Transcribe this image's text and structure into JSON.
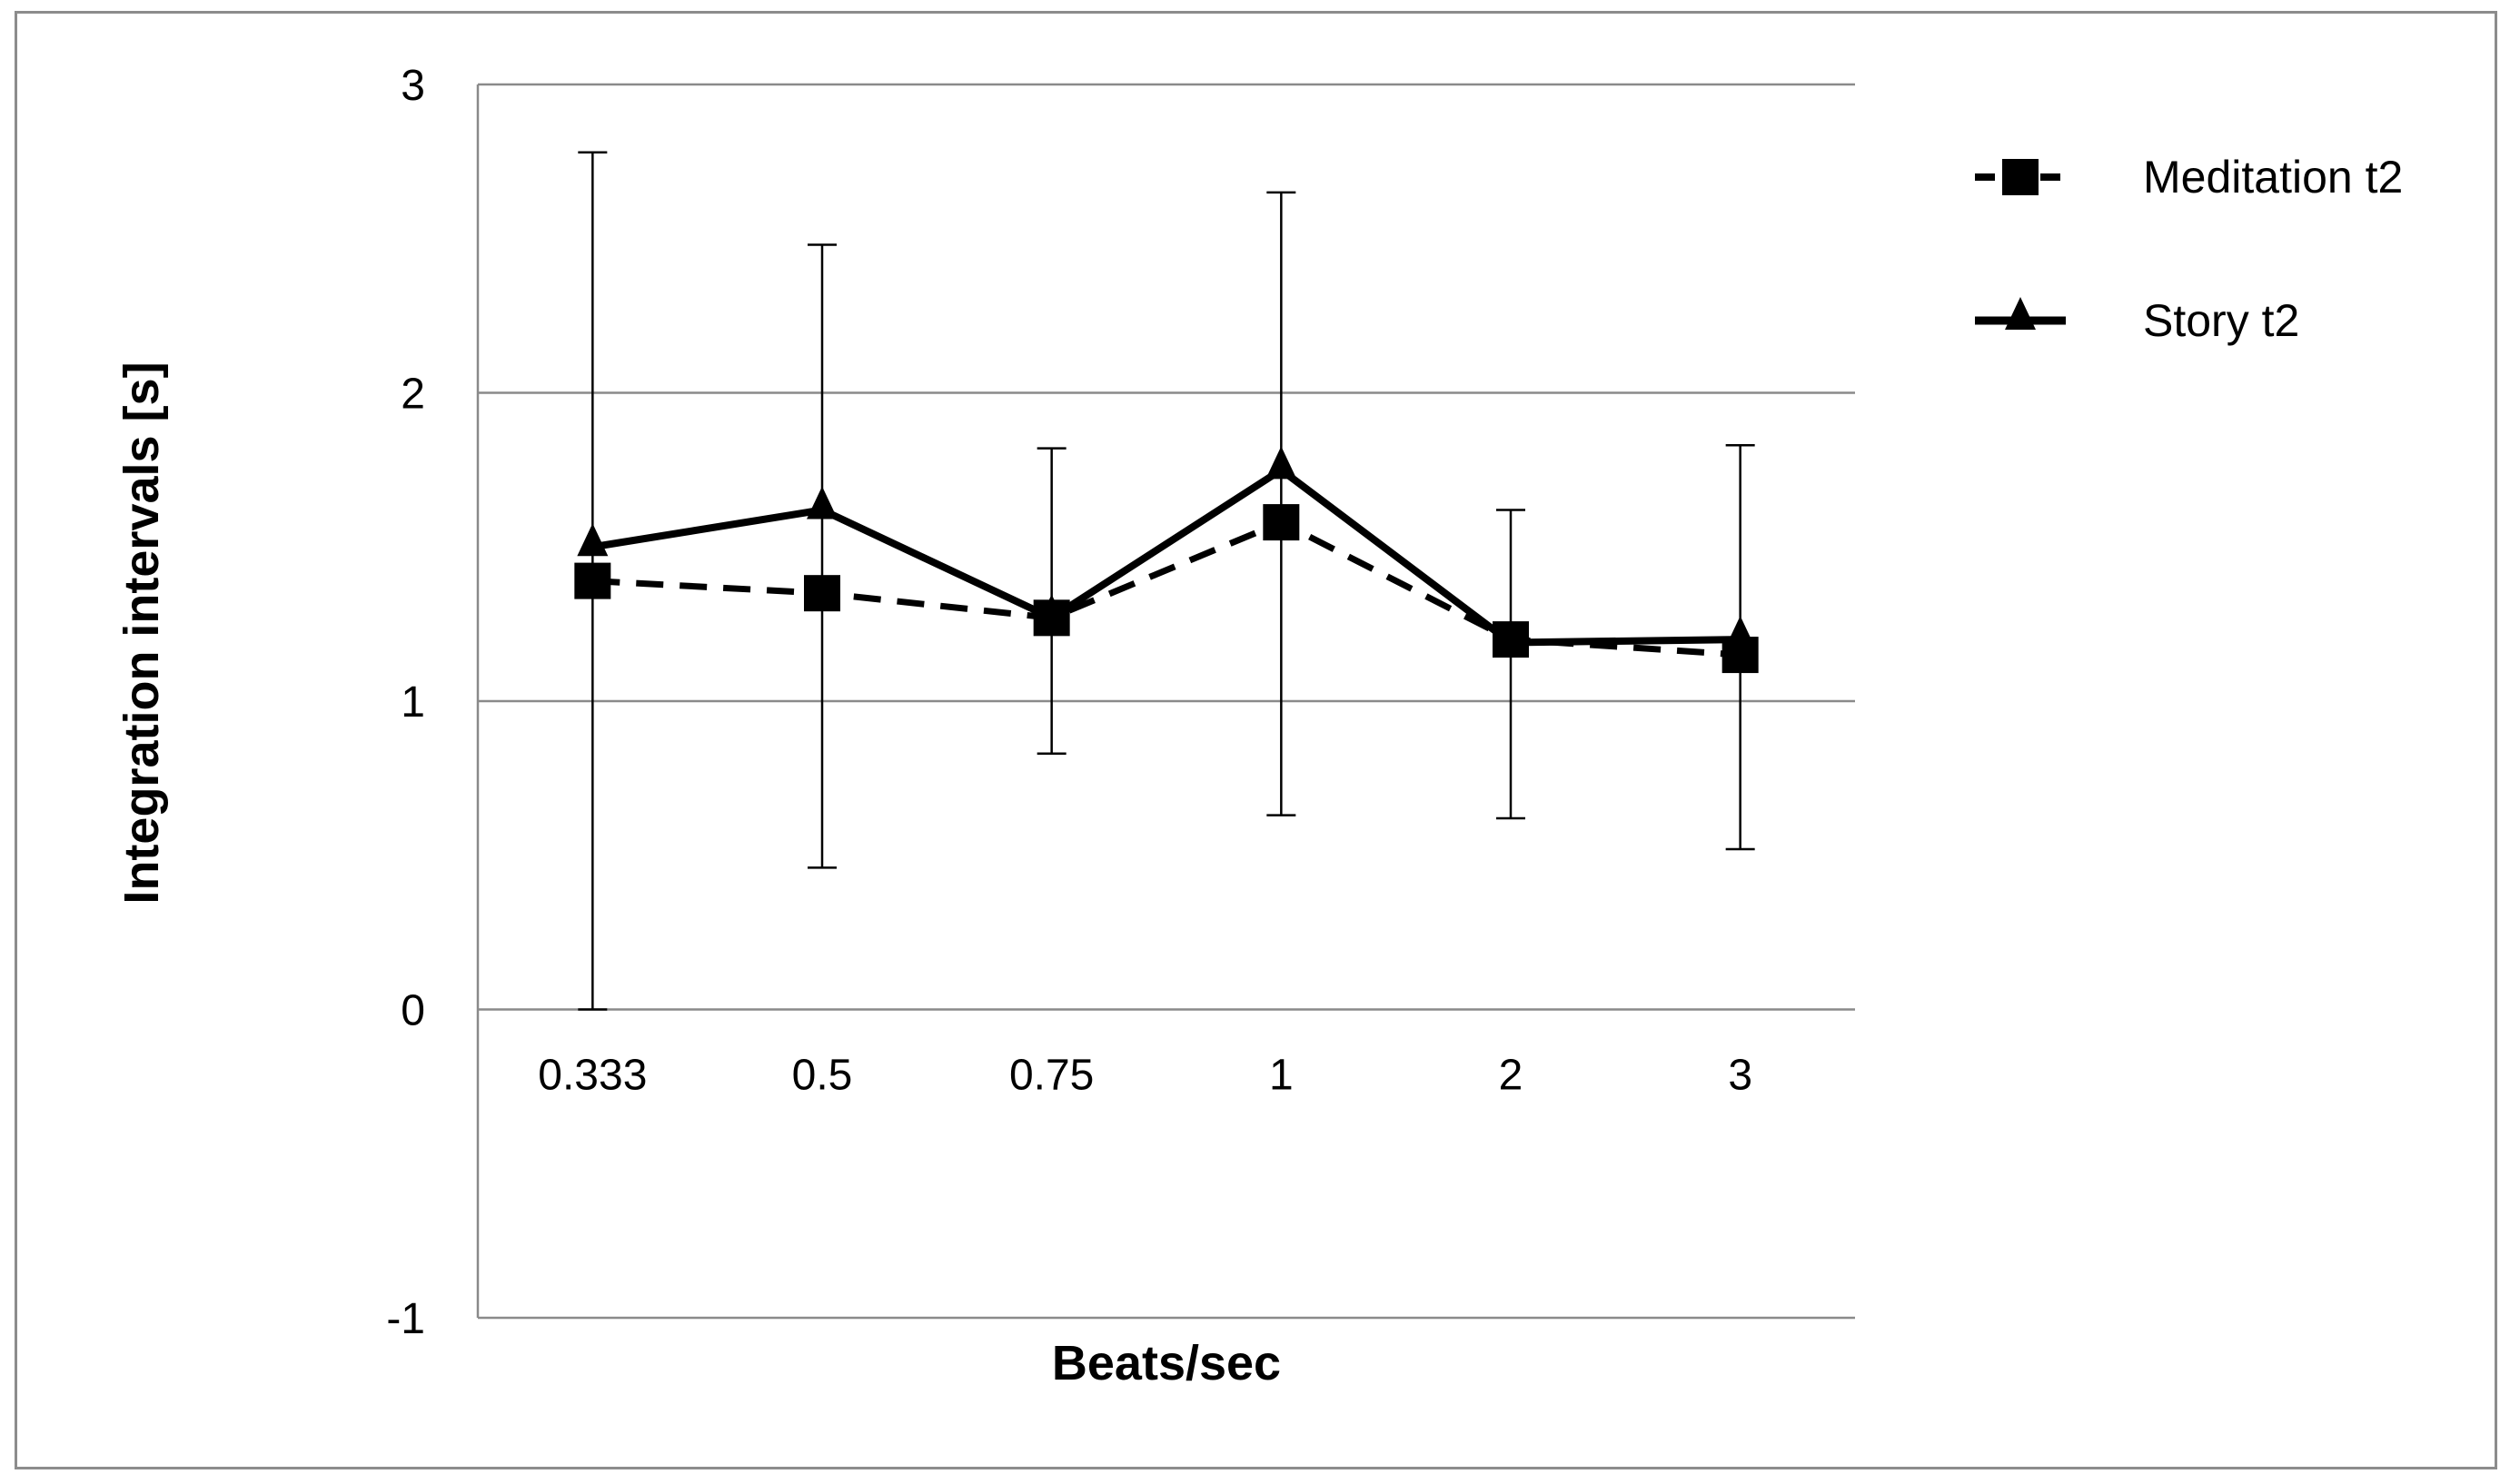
{
  "chart_data": {
    "type": "line",
    "title": "",
    "xlabel": "Beats/sec",
    "ylabel": "Integration intervals [s]",
    "categories": [
      "0.333",
      "0.5",
      "0.75",
      "1",
      "2",
      "3"
    ],
    "ylim": [
      -1,
      3
    ],
    "yticks": [
      "3",
      "2",
      "1",
      "0",
      "-1"
    ],
    "ytick_values": [
      3,
      2,
      1,
      0,
      -1
    ],
    "grid": true,
    "legend_position": "top-right",
    "series": [
      {
        "name": "Meditation t2",
        "values": [
          1.39,
          1.35,
          1.27,
          1.58,
          1.2,
          1.15
        ],
        "marker": "square",
        "line_style": "dashed",
        "color": "#000000",
        "errors": [],
        "error_low": [],
        "error_high": []
      },
      {
        "name": "Story t2",
        "values": [
          1.5,
          1.62,
          1.27,
          1.75,
          1.19,
          1.2
        ],
        "marker": "triangle",
        "line_style": "solid",
        "color": "#000000",
        "error_low": [
          0.0,
          0.46,
          0.83,
          0.63,
          0.62,
          0.52
        ],
        "error_high": [
          2.78,
          2.48,
          1.82,
          2.65,
          1.62,
          1.83
        ]
      }
    ]
  }
}
